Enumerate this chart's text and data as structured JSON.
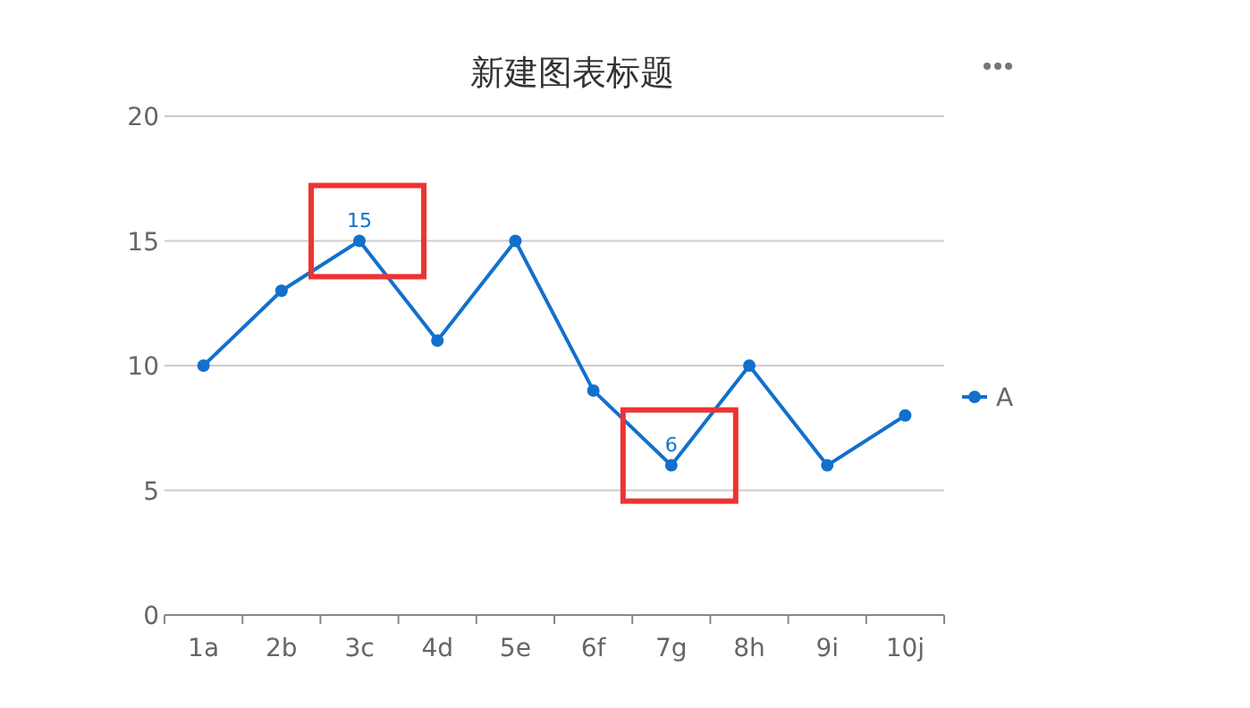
{
  "chart_data": {
    "type": "line",
    "title": "新建图表标题",
    "categories": [
      "1a",
      "2b",
      "3c",
      "4d",
      "5e",
      "6f",
      "7g",
      "8h",
      "9i",
      "10j"
    ],
    "series": [
      {
        "name": "A",
        "color": "#1270cc",
        "values": [
          10,
          13,
          15,
          11,
          15,
          9,
          6,
          10,
          6,
          8
        ],
        "value_labels": [
          null,
          null,
          "15",
          null,
          null,
          null,
          "6",
          null,
          null,
          null
        ]
      }
    ],
    "ylim": [
      0,
      20
    ],
    "yticks": [
      0,
      5,
      10,
      15,
      20
    ],
    "grid": "y",
    "legend": "right",
    "marker": "circle",
    "line_style": "solid"
  }
}
